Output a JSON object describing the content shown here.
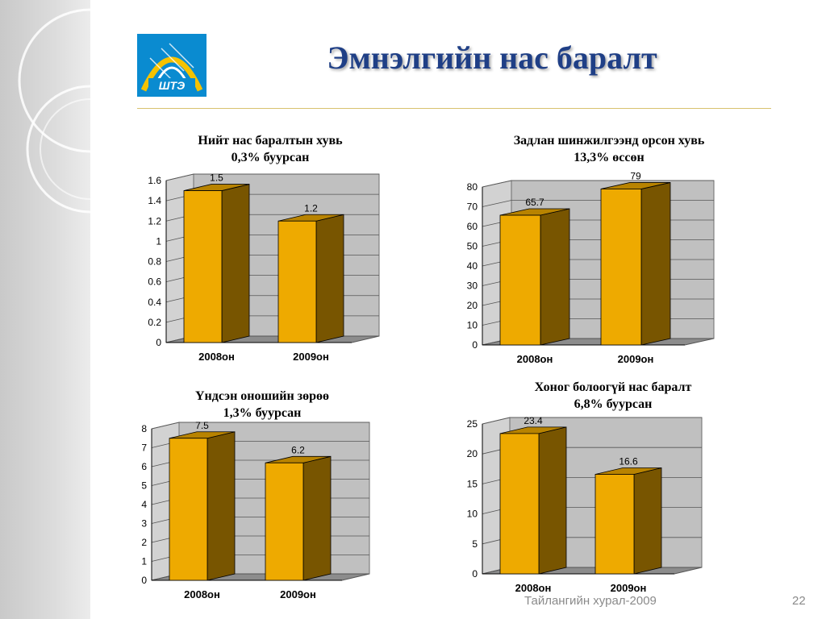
{
  "slide": {
    "title": "Эмнэлгийн нас баралт",
    "logo_text": "ШТЭ",
    "footer": "Тайлангийн хурал-2009",
    "page_number": "22"
  },
  "colors": {
    "bar_front": "#EEAA00",
    "bar_side": "#785500",
    "bar_top": "#B88300",
    "wall": "#C0C0C0",
    "floor": "#8C8C8C",
    "title": "#1F3F86",
    "logo_blue": "#0A8BD0",
    "logo_gold": "#F5C200"
  },
  "chart_data": [
    {
      "type": "bar",
      "title_line1": "Нийт нас баралтын хувь",
      "title_line2": "0,3% буурсан",
      "categories": [
        "2008он",
        "2009он"
      ],
      "values": [
        1.5,
        1.2
      ],
      "value_labels": [
        "1.5",
        "1.2"
      ],
      "ylim": [
        0,
        1.6
      ],
      "yticks": [
        "0",
        "0.2",
        "0.4",
        "0.6",
        "0.8",
        "1",
        "1.2",
        "1.4",
        "1.6"
      ],
      "grid": true
    },
    {
      "type": "bar",
      "title_line1": "Задлан шинжилгээнд орсон хувь",
      "title_line2": "13,3% өссөн",
      "categories": [
        "2008он",
        "2009он"
      ],
      "values": [
        65.7,
        79
      ],
      "value_labels": [
        "65.7",
        "79"
      ],
      "ylim": [
        0,
        80
      ],
      "yticks": [
        "0",
        "10",
        "20",
        "30",
        "40",
        "50",
        "60",
        "70",
        "80"
      ],
      "grid": true
    },
    {
      "type": "bar",
      "title_line1": "Үндсэн оношийн зөрөө",
      "title_line2": "1,3% буурсан",
      "categories": [
        "2008он",
        "2009он"
      ],
      "values": [
        7.5,
        6.2
      ],
      "value_labels": [
        "7.5",
        "6.2"
      ],
      "ylim": [
        0,
        8
      ],
      "yticks": [
        "0",
        "1",
        "2",
        "3",
        "4",
        "5",
        "6",
        "7",
        "8"
      ],
      "grid": true
    },
    {
      "type": "bar",
      "title_line1": "Хоног болоогүй нас баралт",
      "title_line2": "6,8% буурсан",
      "categories": [
        "2008он",
        "2009он"
      ],
      "values": [
        23.4,
        16.6
      ],
      "value_labels": [
        "23.4",
        "16.6"
      ],
      "ylim": [
        0,
        25
      ],
      "yticks": [
        "0",
        "5",
        "10",
        "15",
        "20",
        "25"
      ],
      "grid": true
    }
  ]
}
